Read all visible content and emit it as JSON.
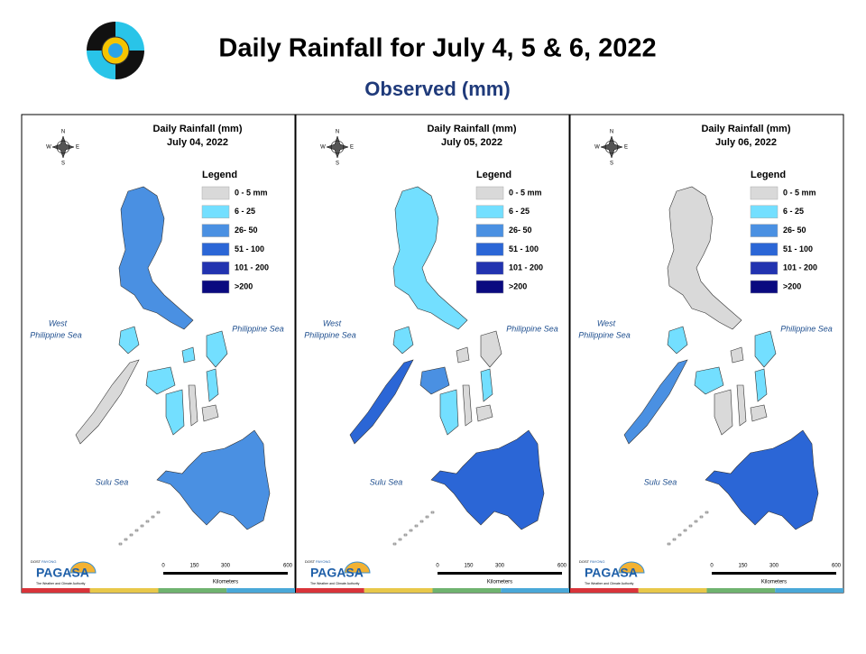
{
  "header": {
    "title": "Daily Rainfall for July 4, 5 & 6, 2022",
    "subtitle": "Observed (mm)"
  },
  "panels": [
    {
      "title": "Daily Rainfall (mm)",
      "date": "July 04, 2022"
    },
    {
      "title": "Daily Rainfall (mm)",
      "date": "July 05, 2022"
    },
    {
      "title": "Daily Rainfall (mm)",
      "date": "July 06, 2022"
    }
  ],
  "legend": {
    "title": "Legend",
    "items": [
      {
        "label": "0 - 5 mm",
        "color": "#d9d9d9"
      },
      {
        "label": "6 - 25",
        "color": "#73dfff"
      },
      {
        "label": "26- 50",
        "color": "#4a90e2"
      },
      {
        "label": "51 - 100",
        "color": "#2b66d6"
      },
      {
        "label": "101 - 200",
        "color": "#2233b0"
      },
      {
        "label": ">200",
        "color": "#0a0a80"
      }
    ]
  },
  "seas": {
    "west": [
      "West",
      "Philippine Sea"
    ],
    "east": "Philippine Sea",
    "south": "Sulu Sea"
  },
  "compass": {
    "n": "N",
    "e": "E",
    "s": "S",
    "w": "W"
  },
  "scale": {
    "ticks": [
      0,
      150,
      300,
      600
    ],
    "unit": "Kilometers"
  },
  "logo": {
    "agency": "PAGASA",
    "dost": "DOST",
    "payong": "PAYONG",
    "tagline": "The Weather and Climate Authority"
  }
}
